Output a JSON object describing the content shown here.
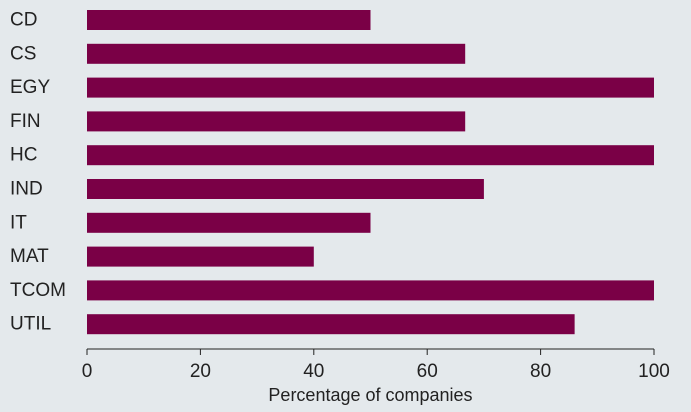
{
  "chart_data": {
    "type": "bar",
    "orientation": "horizontal",
    "categories": [
      "CD",
      "CS",
      "EGY",
      "FIN",
      "HC",
      "IND",
      "IT",
      "MAT",
      "TCOM",
      "UTIL"
    ],
    "values": [
      50,
      66.7,
      100,
      66.7,
      100,
      70,
      50,
      40,
      100,
      86
    ],
    "xlabel": "Percentage of companies",
    "xlim": [
      0,
      100
    ],
    "xticks": [
      "0",
      "20",
      "40",
      "60",
      "80",
      "100"
    ],
    "grid": false,
    "colors": {
      "background": "#e4e9ec",
      "bar": "#7a0046",
      "axis": "#222222"
    }
  }
}
